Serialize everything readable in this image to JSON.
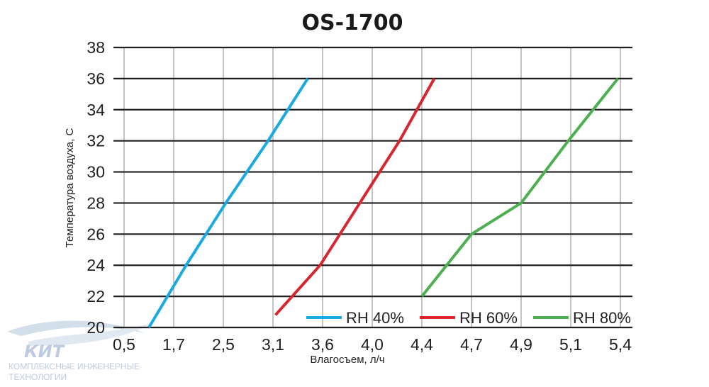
{
  "chart_data": {
    "type": "line",
    "title": "OS-1700",
    "xlabel": "Влагосъем, л/ч",
    "ylabel": "Температура воздуха, С",
    "x_categories": [
      "0,5",
      "1,7",
      "2,5",
      "3,1",
      "3,6",
      "4,0",
      "4,4",
      "4,7",
      "4,9",
      "5,1",
      "5,4"
    ],
    "y_ticks": [
      "20",
      "22",
      "24",
      "26",
      "28",
      "30",
      "32",
      "34",
      "36",
      "38"
    ],
    "ylim": [
      20,
      38
    ],
    "grid": true,
    "legend_placement": "bottom-right",
    "series": [
      {
        "name": "RH 40%",
        "color": "#1ba9e1",
        "points": [
          [
            0.5,
            20
          ],
          [
            1.25,
            24
          ],
          [
            2.05,
            28
          ],
          [
            2.9,
            32
          ],
          [
            3.7,
            36
          ]
        ]
      },
      {
        "name": "RH 60%",
        "color": "#d7262e",
        "points": [
          [
            3.05,
            20.8
          ],
          [
            3.95,
            24
          ],
          [
            4.75,
            28
          ],
          [
            5.55,
            32
          ],
          [
            6.25,
            36
          ]
        ]
      },
      {
        "name": "RH 80%",
        "color": "#4caf50",
        "points": [
          [
            6.0,
            22
          ],
          [
            7.0,
            26
          ],
          [
            8.0,
            28
          ],
          [
            8.95,
            32
          ],
          [
            9.95,
            36
          ]
        ]
      }
    ]
  },
  "logo": {
    "name": "КИТ",
    "line1": "КОМПЛЕКСНЫЕ ИНЖЕНЕРНЫЕ",
    "line2": "ТЕХНОЛОГИИ"
  }
}
